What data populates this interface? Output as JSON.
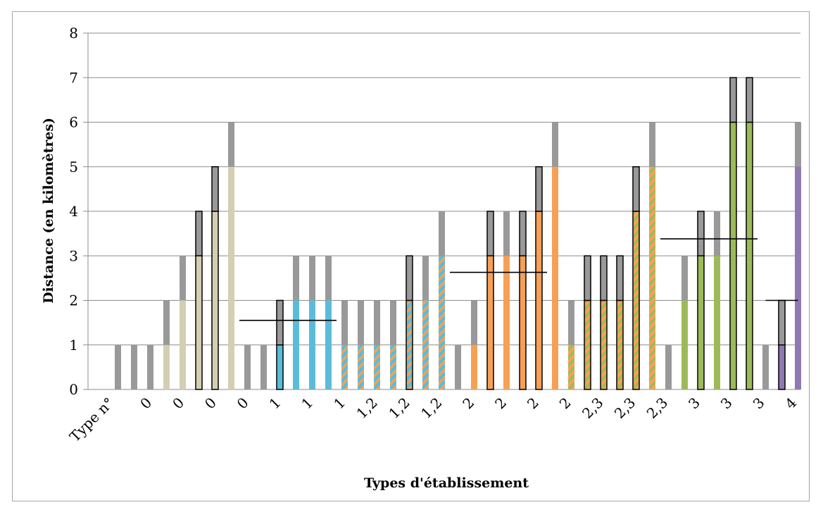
{
  "chart_data": {
    "type": "bar",
    "stacked": true,
    "xlabel": "Types d'établissement",
    "ylabel": "Distance (en kilomètres)",
    "ylim": [
      0,
      8
    ],
    "yticks": [
      0,
      1,
      2,
      3,
      4,
      5,
      6,
      7,
      8
    ],
    "grid": true,
    "legend": "none",
    "xtick_labels": [
      "Type n°",
      "0",
      "0",
      "0",
      "0",
      "1",
      "1",
      "1",
      "1,2",
      "1,2",
      "1,2",
      "2",
      "2",
      "2",
      "2",
      "2,3",
      "2,3",
      "2,3",
      "3",
      "3",
      "3",
      "4"
    ],
    "colors": {
      "grey": "#999999",
      "type0": "#d3cfb2",
      "type1": "#5bbcd9",
      "type12_stripe": "#f7a055",
      "type2": "#f7a055",
      "type23_stripe": "#9bbb59",
      "type3": "#9bbb59",
      "type4": "#8f79b3",
      "outline": "#000000",
      "grid": "#8c8c8c",
      "mean_line": "#000000"
    },
    "bars": [
      {
        "base": 0,
        "top": 1,
        "fill": "none",
        "outlined": false
      },
      {
        "base": 0,
        "top": 1,
        "fill": "none",
        "outlined": false
      },
      {
        "base": 0,
        "top": 1,
        "fill": "none",
        "outlined": false
      },
      {
        "base": 1,
        "top": 1,
        "fill": "type0",
        "outlined": false
      },
      {
        "base": 2,
        "top": 1,
        "fill": "type0",
        "outlined": false
      },
      {
        "base": 3,
        "top": 1,
        "fill": "type0",
        "outlined": true
      },
      {
        "base": 4,
        "top": 1,
        "fill": "type0",
        "outlined": true
      },
      {
        "base": 5,
        "top": 1,
        "fill": "type0",
        "outlined": false
      },
      {
        "base": 0,
        "top": 1,
        "fill": "none",
        "outlined": false
      },
      {
        "base": 0,
        "top": 1,
        "fill": "none",
        "outlined": false
      },
      {
        "base": 1,
        "top": 1,
        "fill": "type1",
        "outlined": true
      },
      {
        "base": 2,
        "top": 1,
        "fill": "type1",
        "outlined": false
      },
      {
        "base": 2,
        "top": 1,
        "fill": "type1",
        "outlined": false
      },
      {
        "base": 2,
        "top": 1,
        "fill": "type1",
        "outlined": false
      },
      {
        "base": 1,
        "top": 1,
        "fill": "type12",
        "outlined": false
      },
      {
        "base": 1,
        "top": 1,
        "fill": "type12",
        "outlined": false
      },
      {
        "base": 1,
        "top": 1,
        "fill": "type12",
        "outlined": false
      },
      {
        "base": 1,
        "top": 1,
        "fill": "type12",
        "outlined": false
      },
      {
        "base": 2,
        "top": 1,
        "fill": "type12",
        "outlined": true
      },
      {
        "base": 2,
        "top": 1,
        "fill": "type12",
        "outlined": false
      },
      {
        "base": 3,
        "top": 1,
        "fill": "type12",
        "outlined": false
      },
      {
        "base": 0,
        "top": 1,
        "fill": "none",
        "outlined": false
      },
      {
        "base": 1,
        "top": 1,
        "fill": "type2",
        "outlined": false
      },
      {
        "base": 3,
        "top": 1,
        "fill": "type2",
        "outlined": true
      },
      {
        "base": 3,
        "top": 1,
        "fill": "type2",
        "outlined": false
      },
      {
        "base": 3,
        "top": 1,
        "fill": "type2",
        "outlined": true
      },
      {
        "base": 4,
        "top": 1,
        "fill": "type2",
        "outlined": true
      },
      {
        "base": 5,
        "top": 1,
        "fill": "type2",
        "outlined": false
      },
      {
        "base": 1,
        "top": 1,
        "fill": "type23",
        "outlined": false
      },
      {
        "base": 2,
        "top": 1,
        "fill": "type23",
        "outlined": true
      },
      {
        "base": 2,
        "top": 1,
        "fill": "type23",
        "outlined": true
      },
      {
        "base": 2,
        "top": 1,
        "fill": "type23",
        "outlined": true
      },
      {
        "base": 4,
        "top": 1,
        "fill": "type23",
        "outlined": true
      },
      {
        "base": 5,
        "top": 1,
        "fill": "type23",
        "outlined": false
      },
      {
        "base": 0,
        "top": 1,
        "fill": "none",
        "outlined": false
      },
      {
        "base": 2,
        "top": 1,
        "fill": "type3",
        "outlined": false
      },
      {
        "base": 3,
        "top": 1,
        "fill": "type3",
        "outlined": true
      },
      {
        "base": 3,
        "top": 1,
        "fill": "type3",
        "outlined": false
      },
      {
        "base": 6,
        "top": 1,
        "fill": "type3",
        "outlined": true
      },
      {
        "base": 6,
        "top": 1,
        "fill": "type3",
        "outlined": true
      },
      {
        "base": 0,
        "top": 1,
        "fill": "none",
        "outlined": false
      },
      {
        "base": 1,
        "top": 1,
        "fill": "type4",
        "outlined": true
      },
      {
        "base": 5,
        "top": 1,
        "fill": "type4",
        "outlined": false
      }
    ],
    "mean_lines": [
      {
        "group": "1",
        "value": 1.55,
        "from_bar": 7.5,
        "to_bar": 13.5
      },
      {
        "group": "2",
        "value": 2.63,
        "from_bar": 20.5,
        "to_bar": 26.5
      },
      {
        "group": "3",
        "value": 3.38,
        "from_bar": 33.5,
        "to_bar": 39.5
      },
      {
        "group": "4",
        "value": 2.0,
        "from_bar": 40.0,
        "to_bar": 42.0
      }
    ]
  }
}
